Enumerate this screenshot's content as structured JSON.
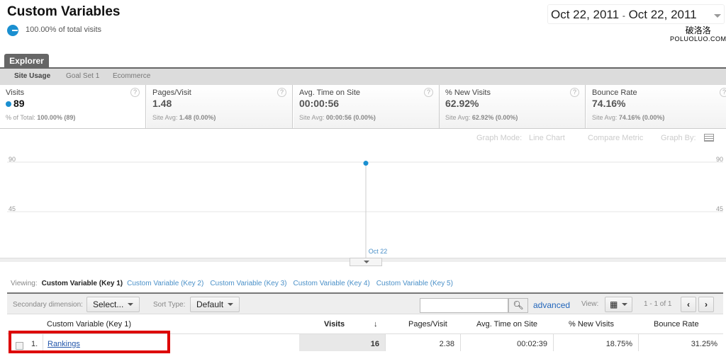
{
  "header": {
    "title": "Custom Variables",
    "segment_text": "100.00% of total visits",
    "date_start": "Oct 22, 2011",
    "date_sep": "-",
    "date_end": "Oct 22, 2011",
    "watermark": "破洛洛\nPOLUOLUO.COM"
  },
  "explorer_tab": "Explorer",
  "subtabs": [
    "Site Usage",
    "Goal Set 1",
    "Ecommerce"
  ],
  "metrics": [
    {
      "label": "Visits",
      "value": "89",
      "sub_label": "% of Total:",
      "sub_value": "100.00% (89)"
    },
    {
      "label": "Pages/Visit",
      "value": "1.48",
      "sub_label": "Site Avg:",
      "sub_value": "1.48 (0.00%)"
    },
    {
      "label": "Avg. Time on Site",
      "value": "00:00:56",
      "sub_label": "Site Avg:",
      "sub_value": "00:00:56 (0.00%)"
    },
    {
      "label": "% New Visits",
      "value": "62.92%",
      "sub_label": "Site Avg:",
      "sub_value": "62.92% (0.00%)"
    },
    {
      "label": "Bounce Rate",
      "value": "74.16%",
      "sub_label": "Site Avg:",
      "sub_value": "74.16% (0.00%)"
    }
  ],
  "graph_options": {
    "mode_label": "Graph Mode:",
    "mode_value": "Line Chart",
    "compare": "Compare Metric",
    "graph_by": "Graph By:"
  },
  "chart_data": {
    "type": "line",
    "x": [
      "Oct 22"
    ],
    "series": [
      {
        "values": [
          89
        ]
      }
    ],
    "yticks": [
      45,
      90
    ],
    "ylim": [
      0,
      90
    ],
    "color": "#1a8fd0",
    "grid": true
  },
  "viewing": {
    "label": "Viewing:",
    "current": "Custom Variable (Key 1)",
    "links": [
      "Custom Variable (Key 2)",
      "Custom Variable (Key 3)",
      "Custom Variable (Key 4)",
      "Custom Variable (Key 5)"
    ]
  },
  "toolbar": {
    "secondary_label": "Secondary dimension:",
    "secondary_value": "Select...",
    "sort_label": "Sort Type:",
    "sort_value": "Default",
    "search_value": "",
    "advanced": "advanced",
    "view_label": "View:",
    "pagination": "1 - 1 of 1"
  },
  "table": {
    "columns": [
      "Custom Variable (Key 1)",
      "Visits",
      "Pages/Visit",
      "Avg. Time on Site",
      "% New Visits",
      "Bounce Rate"
    ],
    "rows": [
      {
        "index": "1.",
        "name": "Rankings",
        "visits": "16",
        "pages": "2.38",
        "time": "00:02:39",
        "new": "18.75%",
        "bounce": "31.25%"
      }
    ]
  }
}
